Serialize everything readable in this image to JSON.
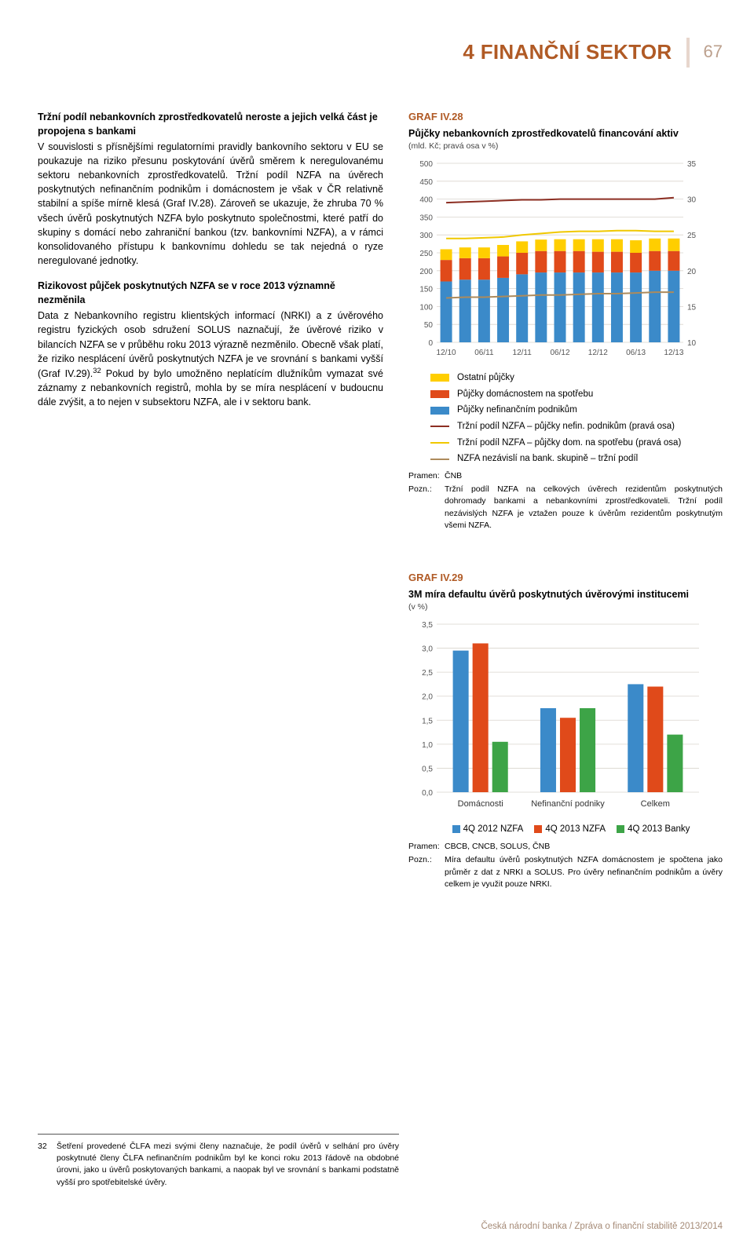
{
  "header": {
    "title": "4 FINANČNÍ SEKTOR",
    "page_number": "67"
  },
  "left": {
    "p1_title": "Tržní podíl nebankovních zprostředkovatelů neroste a jejich velká část je propojena s bankami",
    "p1_body": "V souvislosti s přísnějšími regulatorními pravidly bankovního sektoru v EU se poukazuje na riziko přesunu poskytování úvěrů směrem k neregulovanému sektoru nebankovních zprostředkovatelů. Tržní podíl NZFA na úvěrech poskytnutých nefinančním podnikům i domácnostem je však v ČR relativně stabilní a spíše mírně klesá (Graf IV.28). Zároveň se ukazuje, že zhruba 70 % všech úvěrů poskytnutých NZFA bylo poskytnuto společnostmi, které patří do skupiny s domácí nebo zahraniční bankou (tzv. bankovními NZFA), a v rámci konsolidovaného přístupu k bankovnímu dohledu se tak nejedná o ryze neregulované jednotky.",
    "p2_title": "Rizikovost půjček poskytnutých NZFA se v roce 2013 významně nezměnila",
    "p2_body": "Data z Nebankovního registru klientských informací (NRKI) a z úvěrového registru fyzických osob sdružení SOLUS naznačují, že úvěrové riziko v bilancích NZFA se v průběhu roku 2013 výrazně nezměnilo. Obecně však platí, že riziko nesplácení úvěrů poskytnutých NZFA je ve srovnání s bankami vyšší (Graf IV.29).",
    "p2_body2": " Pokud by bylo umožněno neplatícím dlužníkům vymazat své záznamy z nebankovních registrů, mohla by se míra nesplácení v budoucnu dále zvýšit, a to nejen v subsektoru NZFA, ale i v sektoru bank.",
    "fn_sup": "32"
  },
  "chart28": {
    "title": "GRAF IV.28",
    "subtitle": "Půjčky nebankovních zprostředkovatelů financování aktiv",
    "subsub": "(mld. Kč; pravá osa v %)",
    "left_axis": {
      "min": 0,
      "max": 500,
      "step": 50
    },
    "right_axis": {
      "min": 10,
      "max": 35,
      "step": 5
    },
    "x_labels": [
      "12/10",
      "06/11",
      "12/11",
      "06/12",
      "12/12",
      "06/13",
      "12/13"
    ],
    "periods": [
      "12/10",
      "03/11",
      "06/11",
      "09/11",
      "12/11",
      "03/12",
      "06/12",
      "09/12",
      "12/12",
      "03/13",
      "06/13",
      "09/13",
      "12/13"
    ],
    "bars": {
      "nefin_podniky": [
        170,
        175,
        175,
        180,
        190,
        195,
        195,
        195,
        195,
        195,
        195,
        200,
        200
      ],
      "domacnosti": [
        60,
        60,
        60,
        60,
        60,
        60,
        60,
        60,
        58,
        58,
        55,
        55,
        55
      ],
      "ostatni": [
        30,
        30,
        30,
        32,
        32,
        32,
        33,
        33,
        35,
        35,
        35,
        35,
        35
      ]
    },
    "lines": {
      "trzni_nefin": [
        29.5,
        29.6,
        29.7,
        29.8,
        29.9,
        29.9,
        30.0,
        30.0,
        30.0,
        30.0,
        30.0,
        30.0,
        30.2
      ],
      "trzni_dom": [
        24.5,
        24.5,
        24.6,
        24.7,
        25.0,
        25.2,
        25.4,
        25.5,
        25.5,
        25.6,
        25.6,
        25.5,
        25.5
      ],
      "nzfa_nezavisli": [
        16.2,
        16.3,
        16.3,
        16.4,
        16.5,
        16.6,
        16.6,
        16.7,
        16.8,
        16.8,
        16.9,
        17.0,
        17.0
      ]
    },
    "colors": {
      "ostatni": "#ffce00",
      "domacnosti": "#e04a1a",
      "nefin_podniky": "#3b8ac9",
      "trzni_nefin": "#8c2e22",
      "trzni_dom": "#f0c800",
      "nzfa_nezavisli": "#ad8b5c",
      "grid": "#d9d4cd",
      "axis_text": "#555555"
    },
    "legend": [
      {
        "type": "swatch",
        "key": "ostatni",
        "label": "Ostatní půjčky"
      },
      {
        "type": "swatch",
        "key": "domacnosti",
        "label": "Půjčky domácnostem na spotřebu"
      },
      {
        "type": "swatch",
        "key": "nefin_podniky",
        "label": "Půjčky nefinančním podnikům"
      },
      {
        "type": "line",
        "key": "trzni_nefin",
        "label": "Tržní podíl NZFA – půjčky nefin. podnikům (pravá osa)"
      },
      {
        "type": "line",
        "key": "trzni_dom",
        "label": "Tržní podíl NZFA – půjčky dom. na spotřebu (pravá osa)"
      },
      {
        "type": "line",
        "key": "nzfa_nezavisli",
        "label": "NZFA nezávislí na bank. skupině – tržní podíl"
      }
    ],
    "source_label": "Pramen:",
    "source": "ČNB",
    "note_label": "Pozn.:",
    "note": "Tržní podíl NZFA na celkových úvěrech rezidentům poskytnutých dohromady bankami a nebankovními zprostředkovateli. Tržní podíl nezávislých NZFA je vztažen pouze k úvěrům rezidentům poskytnutým všemi NZFA."
  },
  "chart29": {
    "title": "GRAF IV.29",
    "subtitle": "3M míra defaultu úvěrů poskytnutých úvěrovými institucemi",
    "subsub": "(v %)",
    "y_axis": {
      "min": 0.0,
      "max": 3.5,
      "step": 0.5
    },
    "categories": [
      "Domácnosti",
      "Nefinanční podniky",
      "Celkem"
    ],
    "series": [
      {
        "name": "4Q 2012 NZFA",
        "color": "#3b8ac9",
        "values": [
          2.95,
          1.75,
          2.25
        ]
      },
      {
        "name": "4Q 2013 NZFA",
        "color": "#e04a1a",
        "values": [
          3.1,
          1.55,
          2.2
        ]
      },
      {
        "name": "4Q 2013 Banky",
        "color": "#3da447",
        "values": [
          1.05,
          1.75,
          1.2
        ]
      }
    ],
    "source_label": "Pramen:",
    "source": "CBCB, CNCB, SOLUS, ČNB",
    "note_label": "Pozn.:",
    "note": "Míra defaultu úvěrů poskytnutých NZFA domácnostem je spočtena jako průměr z dat z NRKI a SOLUS. Pro úvěry nefinančním podnikům a úvěry celkem je využit pouze NRKI."
  },
  "footnote": {
    "num": "32",
    "text": "Šetření provedené ČLFA mezi svými členy naznačuje, že podíl úvěrů v selhání pro úvěry poskytnuté členy ČLFA nefinančním podnikům byl ke konci roku 2013 řádově na obdobné úrovni, jako u úvěrů poskytovaných bankami, a naopak byl ve srovnání s bankami podstatně vyšší pro spotřebitelské úvěry."
  },
  "footer": "Česká národní banka / Zpráva o finanční stabilitě 2013/2014"
}
